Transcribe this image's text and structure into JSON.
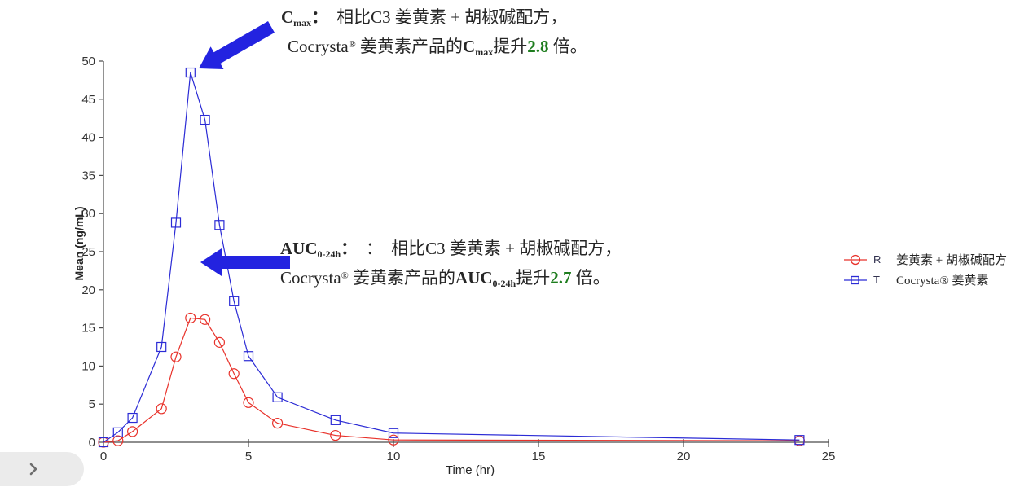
{
  "colors": {
    "arrow": "#2323e0",
    "highlight_green": "#1e7d1e",
    "axis": "#4a4a4a",
    "tick_text": "#333333",
    "series_r": "#e8312a",
    "series_t": "#2b2bd5",
    "expand_button_bg": "#ebebeb",
    "chevron": "#6e6e6e"
  },
  "chart_data": {
    "type": "line",
    "title": "",
    "xlabel": "Time (hr)",
    "ylabel": "Mean (ng/mL)",
    "xlim": [
      0,
      25
    ],
    "ylim": [
      0,
      50
    ],
    "x_ticks": [
      0,
      5,
      10,
      15,
      20,
      25
    ],
    "y_ticks": [
      0,
      5,
      10,
      15,
      20,
      25,
      30,
      35,
      40,
      45,
      50
    ],
    "grid": false,
    "legend_position": "right",
    "x": [
      0,
      0.5,
      1,
      2,
      2.5,
      3,
      3.5,
      4,
      4.5,
      5,
      6,
      8,
      10,
      24
    ],
    "series": [
      {
        "name": "R",
        "letter": "R",
        "label": "姜黄素 + 胡椒碱配方",
        "marker": "circle",
        "color": "#e8312a",
        "values": [
          0,
          0.2,
          1.4,
          4.4,
          11.2,
          16.3,
          16.1,
          13.1,
          9.0,
          5.2,
          2.5,
          0.9,
          0.3,
          0.2
        ]
      },
      {
        "name": "T",
        "letter": "T",
        "label": "Cocrysta® 姜黄素",
        "marker": "square",
        "color": "#2b2bd5",
        "values": [
          0,
          1.3,
          3.2,
          12.5,
          28.8,
          48.5,
          42.3,
          28.5,
          18.5,
          11.3,
          5.9,
          2.9,
          1.2,
          0.3
        ]
      }
    ]
  },
  "annotations": {
    "cmax": {
      "term": "C",
      "term_sub": "max",
      "term_colon": "：",
      "line1_text": "相比C3 姜黄素 + 胡椒碱配方，",
      "brand": "Cocrysta",
      "brand_reg": "®",
      "line2_mid": " 姜黄素产品的",
      "term2": "C",
      "term2_sub": "max",
      "lift_text": "提升",
      "value": "2.8",
      "tail": " 倍。"
    },
    "auc": {
      "term": "AUC",
      "term_sub": "0-24h",
      "term_colon": "：",
      "extra_colon": "：",
      "line1_text": "相比C3 姜黄素 + 胡椒碱配方，",
      "brand": "Cocrysta",
      "brand_reg": "®",
      "line2_mid": " 姜黄素产品的",
      "term2": "AUC",
      "term2_sub": "0-24h",
      "lift_text": "提升",
      "value": "2.7",
      "tail": " 倍。"
    }
  }
}
